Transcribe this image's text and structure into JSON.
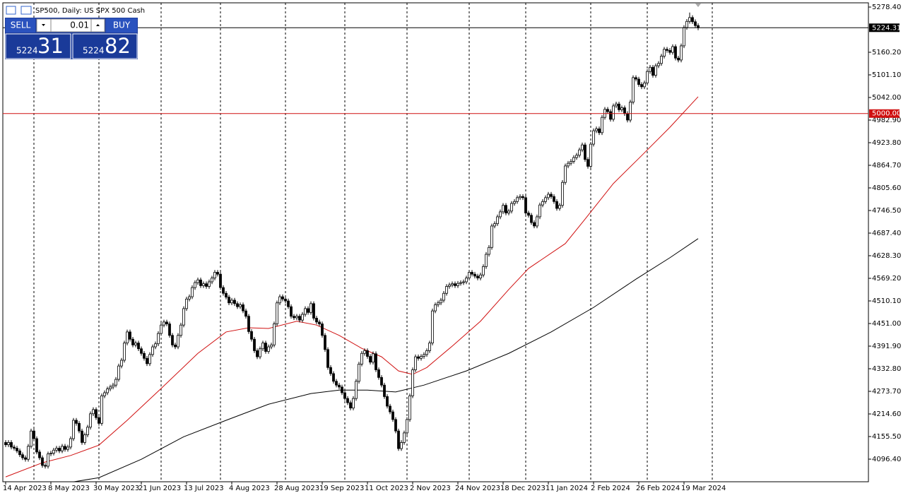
{
  "header": {
    "title": "SP500, Daily:  US SPX 500 Cash"
  },
  "trade_panel": {
    "sell": "SELL",
    "buy": "BUY",
    "volume": "0.01",
    "bid_big": "5224",
    "bid_small": "31",
    "ask_big": "5224",
    "ask_small": "82"
  },
  "chart_data": {
    "type": "candlestick",
    "xlim": [
      -1,
      305.25
    ],
    "ylim": [
      4037.3,
      5289.5
    ],
    "xticks": [
      {
        "value": 0,
        "label": "14 Apr 2023"
      },
      {
        "value": 16,
        "label": "8 May 2023"
      },
      {
        "value": 32,
        "label": "30 May 2023"
      },
      {
        "value": 48,
        "label": "21 Jun 2023"
      },
      {
        "value": 64,
        "label": "13 Jul 2023"
      },
      {
        "value": 80,
        "label": "4 Aug 2023"
      },
      {
        "value": 96,
        "label": "28 Aug 2023"
      },
      {
        "value": 112,
        "label": "19 Sep 2023"
      },
      {
        "value": 128,
        "label": "11 Oct 2023"
      },
      {
        "value": 144,
        "label": "2 Nov 2023"
      },
      {
        "value": 160,
        "label": "24 Nov 2023"
      },
      {
        "value": 176,
        "label": "18 Dec 2023"
      },
      {
        "value": 192,
        "label": "11 Jan 2024"
      },
      {
        "value": 208,
        "label": "2 Feb 2024"
      },
      {
        "value": 224,
        "label": "26 Feb 2024"
      },
      {
        "value": 240,
        "label": "19 Mar 2024"
      }
    ],
    "yticks": [
      {
        "value": 5278.4,
        "label": "5278.40"
      },
      {
        "value": 5160.2,
        "label": "5160.20"
      },
      {
        "value": 5101.1,
        "label": "5101.10"
      },
      {
        "value": 5042,
        "label": "5042.00"
      },
      {
        "value": 4982.9,
        "label": "4982.90"
      },
      {
        "value": 4923.8,
        "label": "4923.80"
      },
      {
        "value": 4864.7,
        "label": "4864.70"
      },
      {
        "value": 4805.6,
        "label": "4805.60"
      },
      {
        "value": 4746.5,
        "label": "4746.50"
      },
      {
        "value": 4687.4,
        "label": "4687.40"
      },
      {
        "value": 4628.3,
        "label": "4628.30"
      },
      {
        "value": 4569.2,
        "label": "4569.20"
      },
      {
        "value": 4510.1,
        "label": "4510.10"
      },
      {
        "value": 4451,
        "label": "4451.00"
      },
      {
        "value": 4391.9,
        "label": "4391.90"
      },
      {
        "value": 4332.8,
        "label": "4332.80"
      },
      {
        "value": 4273.7,
        "label": "4273.70"
      },
      {
        "value": 4214.6,
        "label": "4214.60"
      },
      {
        "value": 4155.5,
        "label": "4155.50"
      },
      {
        "value": 4096.4,
        "label": "4096.40"
      }
    ],
    "period_separators": [
      10,
      33,
      55,
      76,
      99,
      120,
      142,
      164,
      184,
      207,
      227,
      250
    ],
    "bull_color": "#ffffff",
    "bear_color": "#000000",
    "outline_color": "#000000",
    "open": [
      4140,
      4134,
      4140,
      4128,
      4125,
      4118,
      4108,
      4100,
      4096,
      4130,
      4170,
      4150,
      4115,
      4100,
      4080,
      4078,
      4110,
      4112,
      4120,
      4125,
      4118,
      4130,
      4122,
      4128,
      4150,
      4198,
      4190,
      4170,
      4140,
      4160,
      4180,
      4215,
      4226,
      4205,
      4190,
      4262,
      4270,
      4280,
      4285,
      4290,
      4305,
      4340,
      4355,
      4400,
      4429,
      4410,
      4395,
      4400,
      4385,
      4373,
      4360,
      4346,
      4370,
      4390,
      4398,
      4425,
      4447,
      4455,
      4450,
      4420,
      4395,
      4390,
      4420,
      4447,
      4490,
      4515,
      4521,
      4545,
      4558,
      4565,
      4550,
      4555,
      4548,
      4560,
      4570,
      4585,
      4580,
      4545,
      4530,
      4520,
      4505,
      4512,
      4503,
      4495,
      4500,
      4484,
      4470,
      4430,
      4410,
      4380,
      4364,
      4385,
      4400,
      4378,
      4390,
      4395,
      4450,
      4505,
      4521,
      4515,
      4510,
      4495,
      4470,
      4466,
      4470,
      4460,
      4475,
      4490,
      4480,
      4503,
      4465,
      4455,
      4450,
      4420,
      4383,
      4336,
      4320,
      4300,
      4290,
      4285,
      4270,
      4255,
      4244,
      4230,
      4255,
      4300,
      4345,
      4373,
      4380,
      4365,
      4350,
      4372,
      4330,
      4310,
      4290,
      4260,
      4235,
      4220,
      4200,
      4170,
      4124,
      4140,
      4165,
      4200,
      4262,
      4330,
      4364,
      4360,
      4365,
      4370,
      4380,
      4400,
      4484,
      4500,
      4505,
      4512,
      4530,
      4548,
      4552,
      4555,
      4550,
      4556,
      4558,
      4560,
      4570,
      4585,
      4580,
      4575,
      4570,
      4578,
      4600,
      4632,
      4650,
      4706,
      4712,
      4730,
      4743,
      4760,
      4740,
      4745,
      4765,
      4770,
      4780,
      4783,
      4780,
      4740,
      4734,
      4715,
      4706,
      4730,
      4761,
      4770,
      4780,
      4789,
      4783,
      4770,
      4752,
      4760,
      4820,
      4863,
      4870,
      4875,
      4885,
      4891,
      4905,
      4918,
      4880,
      4862,
      4920,
      4955,
      4960,
      4950,
      4990,
      5011,
      5005,
      4985,
      5020,
      5025,
      5010,
      5015,
      5000,
      4983,
      5030,
      5094,
      5090,
      5076,
      5070,
      5080,
      5110,
      5121,
      5100,
      5125,
      5131,
      5150,
      5168,
      5165,
      5160,
      5175,
      5145,
      5140,
      5177,
      5225,
      5241,
      5251,
      5240,
      5230
    ],
    "high": [
      4146,
      4146,
      4146,
      4134,
      4131,
      4124,
      4114,
      4106,
      4136,
      4176,
      4176,
      4156,
      4121,
      4106,
      4086,
      4116,
      4118,
      4126,
      4131,
      4131,
      4136,
      4136,
      4134,
      4156,
      4204,
      4204,
      4196,
      4176,
      4166,
      4186,
      4221,
      4232,
      4232,
      4211,
      4268,
      4276,
      4286,
      4291,
      4296,
      4311,
      4346,
      4361,
      4406,
      4435,
      4435,
      4416,
      4406,
      4406,
      4391,
      4379,
      4366,
      4376,
      4396,
      4404,
      4431,
      4453,
      4461,
      4461,
      4456,
      4426,
      4401,
      4426,
      4453,
      4496,
      4521,
      4527,
      4551,
      4564,
      4571,
      4571,
      4561,
      4561,
      4566,
      4576,
      4591,
      4591,
      4586,
      4551,
      4536,
      4526,
      4518,
      4518,
      4509,
      4506,
      4506,
      4490,
      4476,
      4436,
      4416,
      4386,
      4391,
      4406,
      4406,
      4396,
      4401,
      4456,
      4511,
      4527,
      4527,
      4521,
      4516,
      4501,
      4476,
      4476,
      4476,
      4481,
      4496,
      4496,
      4509,
      4509,
      4471,
      4461,
      4456,
      4426,
      4389,
      4342,
      4326,
      4306,
      4296,
      4291,
      4276,
      4261,
      4250,
      4261,
      4306,
      4351,
      4379,
      4386,
      4386,
      4371,
      4378,
      4378,
      4336,
      4316,
      4296,
      4266,
      4241,
      4226,
      4206,
      4176,
      4146,
      4171,
      4206,
      4268,
      4336,
      4370,
      4370,
      4371,
      4376,
      4386,
      4406,
      4490,
      4506,
      4511,
      4518,
      4536,
      4554,
      4558,
      4561,
      4561,
      4562,
      4564,
      4566,
      4576,
      4591,
      4591,
      4586,
      4581,
      4584,
      4606,
      4638,
      4656,
      4712,
      4718,
      4736,
      4749,
      4766,
      4766,
      4751,
      4771,
      4776,
      4786,
      4789,
      4789,
      4786,
      4746,
      4740,
      4721,
      4736,
      4767,
      4776,
      4786,
      4795,
      4795,
      4789,
      4776,
      4766,
      4826,
      4869,
      4876,
      4881,
      4891,
      4897,
      4911,
      4924,
      4924,
      4886,
      4926,
      4961,
      4966,
      4966,
      4996,
      5017,
      5017,
      5011,
      5026,
      5031,
      5031,
      5021,
      5021,
      5006,
      5036,
      5100,
      5100,
      5096,
      5082,
      5086,
      5116,
      5127,
      5127,
      5131,
      5137,
      5156,
      5174,
      5174,
      5171,
      5181,
      5181,
      5151,
      5183,
      5231,
      5247,
      5264,
      5257,
      5246,
      5236
    ],
    "low": [
      4128,
      4128,
      4122,
      4119,
      4112,
      4102,
      4094,
      4090,
      4090,
      4124,
      4144,
      4109,
      4094,
      4074,
      4072,
      4072,
      4104,
      4106,
      4114,
      4112,
      4112,
      4116,
      4116,
      4122,
      4144,
      4184,
      4164,
      4134,
      4134,
      4154,
      4174,
      4209,
      4199,
      4184,
      4184,
      4256,
      4264,
      4274,
      4279,
      4284,
      4299,
      4334,
      4349,
      4394,
      4404,
      4389,
      4389,
      4379,
      4367,
      4354,
      4340,
      4340,
      4364,
      4384,
      4392,
      4419,
      4441,
      4444,
      4414,
      4389,
      4384,
      4384,
      4414,
      4441,
      4484,
      4509,
      4515,
      4539,
      4552,
      4544,
      4544,
      4542,
      4542,
      4554,
      4564,
      4574,
      4539,
      4524,
      4514,
      4499,
      4499,
      4497,
      4489,
      4489,
      4478,
      4464,
      4424,
      4404,
      4374,
      4358,
      4358,
      4379,
      4372,
      4372,
      4384,
      4389,
      4444,
      4499,
      4509,
      4504,
      4489,
      4464,
      4460,
      4460,
      4454,
      4454,
      4469,
      4474,
      4474,
      4459,
      4449,
      4444,
      4414,
      4377,
      4330,
      4314,
      4294,
      4284,
      4279,
      4264,
      4249,
      4238,
      4224,
      4224,
      4249,
      4294,
      4339,
      4367,
      4359,
      4344,
      4344,
      4324,
      4304,
      4284,
      4254,
      4229,
      4214,
      4194,
      4164,
      4118,
      4118,
      4134,
      4159,
      4194,
      4256,
      4324,
      4354,
      4354,
      4359,
      4364,
      4374,
      4394,
      4478,
      4494,
      4499,
      4506,
      4524,
      4542,
      4546,
      4544,
      4544,
      4550,
      4552,
      4554,
      4564,
      4574,
      4569,
      4564,
      4564,
      4572,
      4594,
      4626,
      4644,
      4700,
      4706,
      4724,
      4737,
      4734,
      4734,
      4739,
      4759,
      4764,
      4774,
      4774,
      4734,
      4728,
      4709,
      4700,
      4700,
      4724,
      4755,
      4764,
      4774,
      4777,
      4764,
      4746,
      4746,
      4754,
      4814,
      4857,
      4864,
      4869,
      4879,
      4885,
      4899,
      4874,
      4856,
      4856,
      4914,
      4949,
      4944,
      4944,
      4984,
      4999,
      4979,
      4979,
      5014,
      5004,
      5004,
      4994,
      4977,
      4977,
      5024,
      5084,
      5070,
      5064,
      5064,
      5074,
      5104,
      5094,
      5094,
      5119,
      5125,
      5144,
      5159,
      5154,
      5154,
      5139,
      5134,
      5134,
      5171,
      5219,
      5235,
      5234,
      5224,
      5218
    ],
    "close": [
      4134,
      4140,
      4128,
      4125,
      4118,
      4108,
      4100,
      4096,
      4130,
      4170,
      4150,
      4115,
      4100,
      4080,
      4078,
      4110,
      4112,
      4120,
      4125,
      4118,
      4130,
      4122,
      4128,
      4150,
      4198,
      4190,
      4170,
      4140,
      4160,
      4180,
      4215,
      4226,
      4205,
      4190,
      4262,
      4270,
      4280,
      4285,
      4290,
      4305,
      4340,
      4355,
      4400,
      4429,
      4410,
      4395,
      4400,
      4385,
      4373,
      4360,
      4346,
      4370,
      4390,
      4398,
      4425,
      4447,
      4455,
      4450,
      4420,
      4395,
      4390,
      4420,
      4447,
      4490,
      4515,
      4521,
      4545,
      4558,
      4565,
      4550,
      4555,
      4548,
      4560,
      4570,
      4585,
      4580,
      4545,
      4530,
      4520,
      4505,
      4512,
      4503,
      4495,
      4500,
      4484,
      4470,
      4430,
      4410,
      4380,
      4364,
      4385,
      4400,
      4378,
      4390,
      4395,
      4450,
      4505,
      4521,
      4515,
      4510,
      4495,
      4470,
      4466,
      4470,
      4460,
      4475,
      4490,
      4480,
      4503,
      4465,
      4455,
      4450,
      4420,
      4383,
      4336,
      4320,
      4300,
      4290,
      4285,
      4270,
      4255,
      4244,
      4230,
      4255,
      4300,
      4345,
      4373,
      4380,
      4365,
      4350,
      4372,
      4330,
      4310,
      4290,
      4260,
      4235,
      4220,
      4200,
      4170,
      4124,
      4140,
      4165,
      4200,
      4262,
      4330,
      4364,
      4360,
      4365,
      4370,
      4380,
      4400,
      4484,
      4500,
      4505,
      4512,
      4530,
      4548,
      4552,
      4555,
      4550,
      4556,
      4558,
      4560,
      4570,
      4585,
      4580,
      4575,
      4570,
      4578,
      4600,
      4632,
      4650,
      4706,
      4712,
      4730,
      4743,
      4760,
      4740,
      4745,
      4765,
      4770,
      4780,
      4783,
      4780,
      4740,
      4734,
      4715,
      4706,
      4730,
      4761,
      4770,
      4780,
      4789,
      4783,
      4770,
      4752,
      4760,
      4820,
      4863,
      4870,
      4875,
      4885,
      4891,
      4905,
      4918,
      4880,
      4862,
      4920,
      4955,
      4960,
      4950,
      4990,
      5011,
      5005,
      4985,
      5020,
      5025,
      5010,
      5015,
      5000,
      4983,
      5030,
      5094,
      5090,
      5076,
      5070,
      5080,
      5110,
      5121,
      5100,
      5125,
      5131,
      5150,
      5168,
      5165,
      5160,
      5175,
      5145,
      5140,
      5177,
      5225,
      5241,
      5251,
      5240,
      5230,
      5224.31
    ],
    "lines": [
      {
        "color": "#d01010",
        "x": [
          0,
          13,
          23,
          33,
          43,
          55,
          68,
          78,
          86,
          93,
          103,
          110,
          118,
          126,
          133,
          139,
          144,
          149,
          158,
          168,
          178,
          185,
          198,
          205,
          215,
          225,
          235,
          245
        ],
        "values": [
          4050,
          4087,
          4106,
          4133,
          4198,
          4281,
          4373,
          4429,
          4440,
          4438,
          4457,
          4447,
          4420,
          4386,
          4364,
          4327,
          4318,
          4336,
          4392,
          4457,
          4540,
          4595,
          4660,
          4724,
          4817,
          4890,
          4964,
          5044
        ]
      },
      {
        "color": "#000000",
        "x": [
          24,
          33,
          48,
          63,
          78,
          93,
          108,
          118,
          128,
          138,
          148,
          163,
          178,
          193,
          208,
          223,
          235,
          245
        ],
        "values": [
          4037,
          4048,
          4096,
          4155,
          4198,
          4240,
          4268,
          4277,
          4277,
          4272,
          4290,
          4327,
          4373,
          4429,
          4493,
          4567,
          4623,
          4673
        ]
      }
    ],
    "price_lines": [
      {
        "value": 5224.31,
        "label": "5224.31",
        "color": "#000000"
      },
      {
        "value": 5000,
        "label": "5000.00",
        "color": "#d01010"
      }
    ]
  }
}
